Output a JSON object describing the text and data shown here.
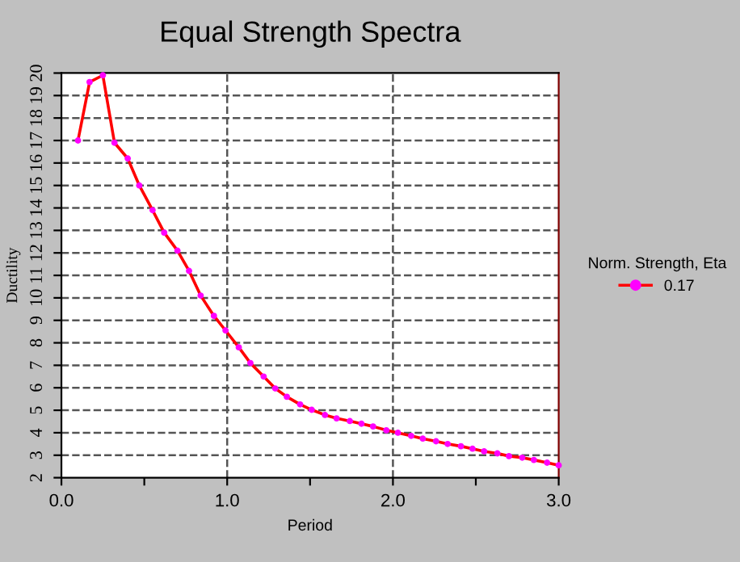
{
  "chart_data": {
    "type": "line",
    "title": "Equal Strength Spectra",
    "xlabel": "Period",
    "ylabel": "Ductility",
    "legend_title": "Norm. Strength, Eta",
    "legend": "right",
    "grid": true,
    "marker": "circle",
    "line_style": "solid",
    "xlim": [
      0,
      3
    ],
    "ylim": [
      2,
      20
    ],
    "xticks": [
      {
        "value": 0,
        "label": "0.0"
      },
      {
        "value": 0.5,
        "label": null
      },
      {
        "value": 1,
        "label": "1.0"
      },
      {
        "value": 1.5,
        "label": null
      },
      {
        "value": 2,
        "label": "2.0"
      },
      {
        "value": 2.5,
        "label": null
      },
      {
        "value": 3,
        "label": "3.0"
      }
    ],
    "yticks": [
      2,
      3,
      4,
      5,
      6,
      7,
      8,
      9,
      10,
      11,
      12,
      13,
      14,
      15,
      16,
      17,
      18,
      19,
      20
    ],
    "series": [
      {
        "name": "0.17",
        "color": "#ff0000",
        "colors": [
          "#ff00ff",
          "#ff00ff",
          "#ff00ff",
          "#ff00ff",
          "#ff00ff",
          "#ff00ff",
          "#ff00ff",
          "#ff00ff",
          "#ff00ff",
          "#ff00ff",
          "#ff00ff",
          "#ff00ff",
          "#ff00ff",
          "#ff00ff",
          "#ff00ff",
          "#ff00ff",
          "#ff00ff",
          "#ff00ff",
          "#ff00ff",
          "#ff00ff",
          "#ff00ff",
          "#ff00ff",
          "#ff00ff",
          "#ff00ff",
          "#ff00ff",
          "#ff00ff",
          "#ff00ff",
          "#ff00ff",
          "#ff00ff",
          "#ff00ff",
          "#ff00ff",
          "#ff00ff",
          "#ff00ff",
          "#ff00ff",
          "#ff00ff",
          "#ff00ff",
          "#ff00ff",
          "#ff00ff",
          "#ff00ff",
          "#ff00ff"
        ],
        "x": [
          0.1,
          0.17,
          0.25,
          0.32,
          0.4,
          0.47,
          0.55,
          0.62,
          0.7,
          0.77,
          0.84,
          0.92,
          0.99,
          1.07,
          1.14,
          1.22,
          1.29,
          1.36,
          1.44,
          1.51,
          1.59,
          1.66,
          1.74,
          1.81,
          1.88,
          1.96,
          2.03,
          2.11,
          2.18,
          2.26,
          2.33,
          2.41,
          2.48,
          2.55,
          2.63,
          2.7,
          2.78,
          2.85,
          2.93,
          3.0
        ],
        "values": [
          17.0,
          19.6,
          19.9,
          16.9,
          16.2,
          15.0,
          13.9,
          12.9,
          12.1,
          11.2,
          10.1,
          9.2,
          8.55,
          7.8,
          7.1,
          6.5,
          5.97,
          5.6,
          5.26,
          5.02,
          4.79,
          4.64,
          4.52,
          4.4,
          4.28,
          4.11,
          4.0,
          3.86,
          3.74,
          3.62,
          3.5,
          3.4,
          3.29,
          3.17,
          3.08,
          2.96,
          2.89,
          2.79,
          2.67,
          2.55
        ]
      }
    ]
  }
}
